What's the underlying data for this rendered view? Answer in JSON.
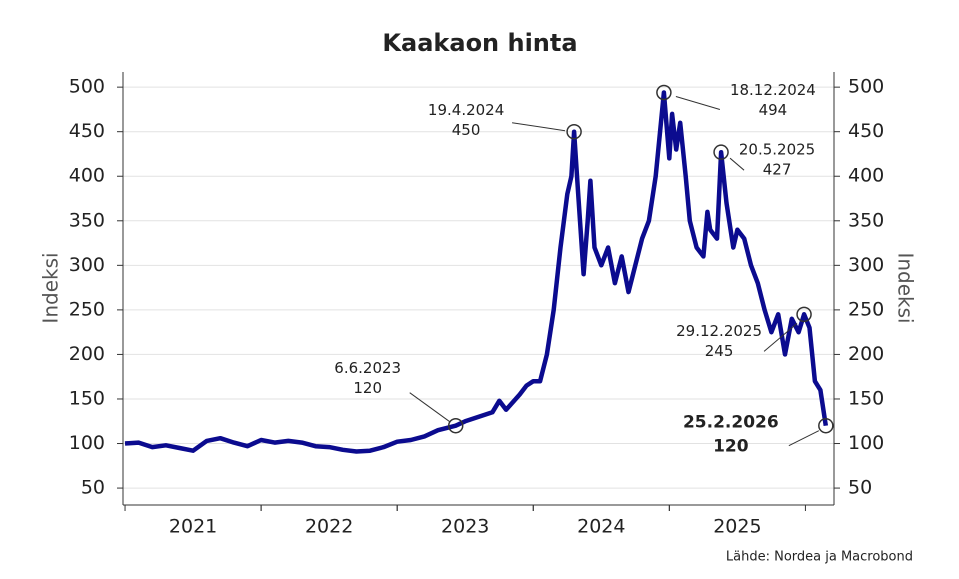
{
  "chart_data": {
    "type": "line",
    "title": "Kaakaon hinta",
    "y_label": "Indeksi",
    "y2_label": "Indeksi",
    "source": "Lähde: Nordea ja Macrobond",
    "xlim": [
      2020.985,
      2026.21
    ],
    "xticks": [
      {
        "value": 2021.5,
        "label": "2021"
      },
      {
        "value": 2022.5,
        "label": "2022"
      },
      {
        "value": 2023.5,
        "label": "2023"
      },
      {
        "value": 2024.5,
        "label": "2024"
      },
      {
        "value": 2025.5,
        "label": "2025"
      }
    ],
    "ylim": [
      31,
      517
    ],
    "yticks": [
      50,
      100,
      150,
      200,
      250,
      300,
      350,
      400,
      450,
      500
    ],
    "y2lim": [
      31,
      517
    ],
    "y2ticks": [
      50,
      100,
      150,
      200,
      250,
      300,
      350,
      400,
      450,
      500
    ],
    "grid": true,
    "series": [
      {
        "color": "#0b0b8f",
        "x": [
          2021.0,
          2021.1,
          2021.2,
          2021.3,
          2021.4,
          2021.5,
          2021.6,
          2021.7,
          2021.8,
          2021.9,
          2022.0,
          2022.1,
          2022.2,
          2022.3,
          2022.4,
          2022.5,
          2022.6,
          2022.7,
          2022.8,
          2022.9,
          2023.0,
          2023.1,
          2023.2,
          2023.3,
          2023.43,
          2023.5,
          2023.6,
          2023.7,
          2023.75,
          2023.8,
          2023.9,
          2023.95,
          2024.0,
          2024.05,
          2024.1,
          2024.15,
          2024.2,
          2024.25,
          2024.28,
          2024.3,
          2024.33,
          2024.37,
          2024.4,
          2024.42,
          2024.45,
          2024.5,
          2024.55,
          2024.6,
          2024.65,
          2024.7,
          2024.75,
          2024.8,
          2024.85,
          2024.9,
          2024.96,
          2025.0,
          2025.02,
          2025.05,
          2025.08,
          2025.12,
          2025.15,
          2025.2,
          2025.25,
          2025.28,
          2025.3,
          2025.35,
          2025.38,
          2025.42,
          2025.47,
          2025.5,
          2025.55,
          2025.6,
          2025.65,
          2025.7,
          2025.75,
          2025.8,
          2025.85,
          2025.9,
          2025.95,
          2025.99,
          2026.03,
          2026.07,
          2026.11,
          2026.15
        ],
        "values": [
          100,
          101,
          96,
          98,
          95,
          92,
          103,
          106,
          101,
          97,
          104,
          101,
          103,
          101,
          97,
          96,
          93,
          91,
          92,
          96,
          102,
          104,
          108,
          115,
          120,
          125,
          130,
          135,
          148,
          138,
          155,
          165,
          170,
          170,
          200,
          250,
          320,
          380,
          400,
          450,
          380,
          290,
          350,
          395,
          320,
          300,
          320,
          280,
          310,
          270,
          300,
          330,
          350,
          400,
          494,
          420,
          470,
          430,
          460,
          400,
          350,
          320,
          310,
          360,
          340,
          330,
          427,
          370,
          320,
          340,
          330,
          300,
          280,
          250,
          225,
          245,
          200,
          240,
          225,
          245,
          230,
          170,
          160,
          120
        ]
      }
    ],
    "annotations": [
      {
        "x": 2023.43,
        "y": 120,
        "date": "6.6.2023"
      },
      {
        "x": 2024.3,
        "y": 450,
        "date": "19.4.2024"
      },
      {
        "x": 2024.96,
        "y": 494,
        "date": "18.12.2024"
      },
      {
        "x": 2025.38,
        "y": 427,
        "date": "20.5.2025"
      },
      {
        "x": 2025.99,
        "y": 245,
        "date": "29.12.2025"
      },
      {
        "x": 2026.15,
        "y": 120,
        "date": "25.2.2026"
      }
    ]
  }
}
